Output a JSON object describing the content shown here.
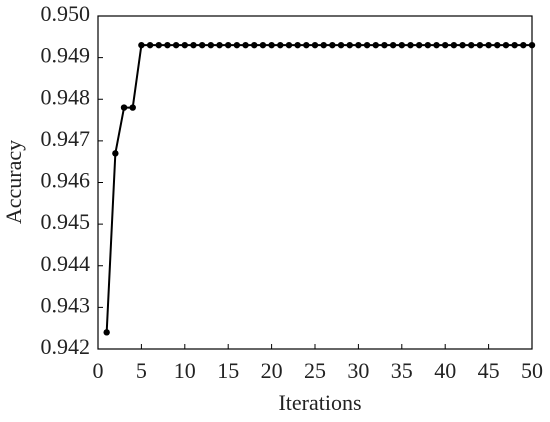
{
  "chart_data": {
    "type": "line",
    "xlabel": "Iterations",
    "ylabel": "Accuracy",
    "color": "#000000",
    "x": [
      1,
      2,
      3,
      4,
      5,
      6,
      7,
      8,
      9,
      10,
      11,
      12,
      13,
      14,
      15,
      16,
      17,
      18,
      19,
      20,
      21,
      22,
      23,
      24,
      25,
      26,
      27,
      28,
      29,
      30,
      31,
      32,
      33,
      34,
      35,
      36,
      37,
      38,
      39,
      40,
      41,
      42,
      43,
      44,
      45,
      46,
      47,
      48,
      49,
      50
    ],
    "values": [
      0.9424,
      0.9467,
      0.9478,
      0.9478,
      0.9493,
      0.9493,
      0.9493,
      0.9493,
      0.9493,
      0.9493,
      0.9493,
      0.9493,
      0.9493,
      0.9493,
      0.9493,
      0.9493,
      0.9493,
      0.9493,
      0.9493,
      0.9493,
      0.9493,
      0.9493,
      0.9493,
      0.9493,
      0.9493,
      0.9493,
      0.9493,
      0.9493,
      0.9493,
      0.9493,
      0.9493,
      0.9493,
      0.9493,
      0.9493,
      0.9493,
      0.9493,
      0.9493,
      0.9493,
      0.9493,
      0.9493,
      0.9493,
      0.9493,
      0.9493,
      0.9493,
      0.9493,
      0.9493,
      0.9493,
      0.9493,
      0.9493,
      0.9493
    ],
    "xlim": [
      0,
      50
    ],
    "xticks": [
      0,
      5,
      10,
      15,
      20,
      25,
      30,
      35,
      40,
      45,
      50
    ],
    "ylim": [
      0.942,
      0.95
    ],
    "yticks": [
      0.942,
      0.943,
      0.944,
      0.945,
      0.946,
      0.947,
      0.948,
      0.949,
      {
        "value": 0.95,
        "label": "0.950"
      }
    ]
  }
}
